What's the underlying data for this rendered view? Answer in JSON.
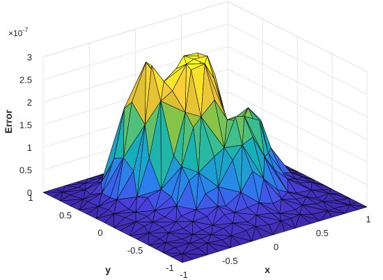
{
  "chart_data": {
    "type": "surface",
    "title": "",
    "xlabel": "x",
    "ylabel": "y",
    "zlabel": "Error",
    "z_exponent_label": "×10",
    "z_exponent_power": "-7",
    "xlim": [
      -1,
      1
    ],
    "ylim": [
      -1,
      1
    ],
    "zlim": [
      0,
      3e-07
    ],
    "x_ticks": [
      {
        "value": -1,
        "label": "-1"
      },
      {
        "value": -0.5,
        "label": "-0.5"
      },
      {
        "value": 0,
        "label": "0"
      },
      {
        "value": 0.5,
        "label": "0.5"
      },
      {
        "value": 1,
        "label": "1"
      }
    ],
    "y_ticks": [
      {
        "value": 1,
        "label": "1"
      },
      {
        "value": 0.5,
        "label": "0.5"
      },
      {
        "value": 0,
        "label": "0"
      },
      {
        "value": -0.5,
        "label": "-0.5"
      },
      {
        "value": -1,
        "label": "-1"
      }
    ],
    "z_ticks": [
      {
        "value": 0,
        "label": "0"
      },
      {
        "value": 0.5,
        "label": "0.5"
      },
      {
        "value": 1,
        "label": "1"
      },
      {
        "value": 1.5,
        "label": "1.5"
      },
      {
        "value": 2,
        "label": "2"
      },
      {
        "value": 2.5,
        "label": "2.5"
      },
      {
        "value": 3,
        "label": "3"
      }
    ],
    "colormap": "parula",
    "colormap_stops": [
      "#3e26a8",
      "#4a43e2",
      "#2c7cf0",
      "#1e9cd6",
      "#17b2b5",
      "#3fbf8a",
      "#8cc442",
      "#d2bb2d",
      "#fbcd3a",
      "#f9fb15"
    ],
    "mesh_edge_color": "#000000",
    "grid": true,
    "peaks": [
      {
        "x": 0.02,
        "y": 0.12,
        "z": 2.8
      },
      {
        "x": 0.08,
        "y": 0.28,
        "z": 2.5
      },
      {
        "x": -0.32,
        "y": 0.22,
        "z": 2.15
      },
      {
        "x": -0.42,
        "y": 0.45,
        "z": 2.2
      },
      {
        "x": 0.22,
        "y": -0.3,
        "z": 1.55
      },
      {
        "x": 0.45,
        "y": -0.1,
        "z": 1.25
      },
      {
        "x": -0.15,
        "y": -0.12,
        "z": 1.5
      }
    ]
  }
}
